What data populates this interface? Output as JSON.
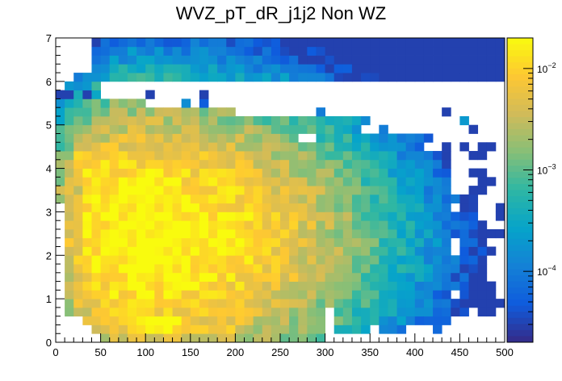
{
  "chart_data": {
    "type": "heatmap",
    "title": "WVZ_pT_dR_j1j2 Non WZ",
    "xlabel": "",
    "ylabel": "",
    "xlim": [
      0,
      500
    ],
    "ylim": [
      0,
      7
    ],
    "x_ticks": [
      "0",
      "50",
      "100",
      "150",
      "200",
      "250",
      "300",
      "350",
      "400",
      "450",
      "500"
    ],
    "y_ticks": [
      "0",
      "1",
      "2",
      "3",
      "4",
      "5",
      "6",
      "7"
    ],
    "x_bins": {
      "count": 50,
      "width": 10
    },
    "y_bins": {
      "count": 35,
      "width": 0.2
    },
    "z_scale": "log",
    "zlim": [
      2e-05,
      0.02
    ],
    "colorbar_labels": [
      {
        "value": 0.01,
        "base": "10",
        "exp": "−2"
      },
      {
        "value": 0.001,
        "base": "10",
        "exp": "−3"
      },
      {
        "value": 0.0001,
        "base": "10",
        "exp": "−4"
      }
    ],
    "palette": [
      "#352a87",
      "#0f5cdd",
      "#1481d6",
      "#06a4ca",
      "#2eb7a4",
      "#87bf77",
      "#d1bb59",
      "#fec832",
      "#f9fb0e"
    ],
    "regions": [
      {
        "x0": 70,
        "x1": 120,
        "y0": 2.6,
        "y1": 3.8,
        "v": 0.02
      },
      {
        "x0": 70,
        "x1": 100,
        "y0": 1.6,
        "y1": 2.6,
        "v": 0.02
      },
      {
        "x0": 80,
        "x1": 140,
        "y0": 0.2,
        "y1": 0.6,
        "v": 0.018
      },
      {
        "x0": 60,
        "x1": 110,
        "y0": 0.6,
        "y1": 1.6,
        "v": 0.011
      },
      {
        "x0": 30,
        "x1": 90,
        "y0": 2.2,
        "y1": 4.2,
        "v": 0.012
      },
      {
        "x0": 100,
        "x1": 150,
        "y0": 1.0,
        "y1": 3.2,
        "v": 0.0065
      },
      {
        "x0": 20,
        "x1": 60,
        "y0": 3.6,
        "y1": 4.6,
        "v": 0.006
      },
      {
        "x0": 110,
        "x1": 200,
        "y0": 0.2,
        "y1": 1.4,
        "v": 0.006
      },
      {
        "x0": 40,
        "x1": 100,
        "y0": 4.2,
        "y1": 5.0,
        "v": 0.003
      },
      {
        "x0": 130,
        "x1": 230,
        "y0": 1.4,
        "y1": 2.6,
        "v": 0.0035
      },
      {
        "x0": 180,
        "x1": 260,
        "y0": 0.6,
        "y1": 1.2,
        "v": 0.003
      },
      {
        "x0": 120,
        "x1": 200,
        "y0": 3.2,
        "y1": 4.2,
        "v": 0.002
      },
      {
        "x0": 10,
        "x1": 40,
        "y0": 1.0,
        "y1": 2.2,
        "v": 0.0035
      }
    ],
    "value_model": {
      "peak": 0.022,
      "center": [
        92,
        2.4
      ],
      "sigma_x": [
        45,
        105
      ],
      "sigma_y": 1.35,
      "floor": 3e-05
    },
    "empty_cells": [
      [
        0,
        0
      ],
      [
        1,
        0
      ],
      [
        2,
        0
      ],
      [
        3,
        0
      ],
      [
        4,
        0
      ],
      [
        0,
        1
      ],
      [
        1,
        1
      ],
      [
        2,
        1
      ],
      [
        3,
        1
      ],
      [
        0,
        2
      ],
      [
        1,
        2
      ],
      [
        2,
        2
      ],
      [
        0,
        3
      ],
      [
        0,
        4
      ],
      [
        0,
        5
      ],
      [
        0,
        6
      ],
      [
        0,
        7
      ],
      [
        0,
        8
      ],
      [
        0,
        9
      ],
      [
        0,
        10
      ],
      [
        0,
        11
      ],
      [
        0,
        12
      ],
      [
        0,
        13
      ],
      [
        0,
        14
      ],
      [
        0,
        15
      ],
      [
        0,
        28
      ],
      [
        0,
        29
      ],
      [
        0,
        30
      ],
      [
        0,
        31
      ],
      [
        0,
        32
      ],
      [
        0,
        33
      ],
      [
        0,
        34
      ],
      [
        1,
        30
      ],
      [
        1,
        31
      ],
      [
        1,
        32
      ],
      [
        1,
        33
      ],
      [
        1,
        34
      ],
      [
        2,
        31
      ],
      [
        2,
        32
      ],
      [
        2,
        33
      ],
      [
        2,
        34
      ],
      [
        3,
        31
      ],
      [
        3,
        32
      ],
      [
        3,
        33
      ],
      [
        3,
        34
      ],
      [
        5,
        29
      ],
      [
        6,
        29
      ],
      [
        7,
        29
      ],
      [
        8,
        29
      ],
      [
        9,
        29
      ],
      [
        10,
        29
      ],
      [
        11,
        29
      ],
      [
        12,
        29
      ],
      [
        13,
        29
      ],
      [
        14,
        29
      ],
      [
        15,
        29
      ],
      [
        16,
        29
      ],
      [
        17,
        29
      ],
      [
        18,
        29
      ],
      [
        19,
        29
      ],
      [
        20,
        29
      ],
      [
        21,
        29
      ],
      [
        22,
        29
      ],
      [
        23,
        29
      ],
      [
        24,
        29
      ],
      [
        25,
        29
      ],
      [
        26,
        29
      ],
      [
        27,
        29
      ],
      [
        28,
        29
      ],
      [
        29,
        29
      ],
      [
        30,
        29
      ],
      [
        31,
        29
      ],
      [
        32,
        29
      ],
      [
        33,
        29
      ],
      [
        34,
        29
      ],
      [
        35,
        29
      ],
      [
        36,
        29
      ],
      [
        37,
        29
      ],
      [
        38,
        29
      ],
      [
        39,
        29
      ],
      [
        40,
        29
      ],
      [
        41,
        29
      ],
      [
        42,
        29
      ],
      [
        43,
        29
      ],
      [
        44,
        29
      ],
      [
        45,
        29
      ],
      [
        46,
        29
      ],
      [
        47,
        29
      ],
      [
        48,
        29
      ],
      [
        49,
        29
      ],
      [
        5,
        28
      ],
      [
        6,
        28
      ],
      [
        7,
        28
      ],
      [
        8,
        28
      ],
      [
        9,
        28
      ],
      [
        10,
        28
      ],
      [
        11,
        28
      ],
      [
        12,
        28
      ],
      [
        13,
        28
      ],
      [
        14,
        28
      ],
      [
        15,
        28
      ],
      [
        17,
        28
      ],
      [
        18,
        28
      ],
      [
        19,
        28
      ],
      [
        20,
        28
      ],
      [
        21,
        28
      ],
      [
        22,
        28
      ],
      [
        23,
        28
      ],
      [
        24,
        28
      ],
      [
        25,
        28
      ],
      [
        26,
        28
      ],
      [
        27,
        28
      ],
      [
        28,
        28
      ],
      [
        29,
        28
      ],
      [
        30,
        28
      ],
      [
        31,
        28
      ],
      [
        32,
        28
      ],
      [
        33,
        28
      ],
      [
        34,
        28
      ],
      [
        35,
        28
      ],
      [
        36,
        28
      ],
      [
        37,
        28
      ],
      [
        38,
        28
      ],
      [
        39,
        28
      ],
      [
        40,
        28
      ],
      [
        41,
        28
      ],
      [
        42,
        28
      ],
      [
        43,
        28
      ],
      [
        44,
        28
      ],
      [
        45,
        28
      ],
      [
        46,
        28
      ],
      [
        47,
        28
      ],
      [
        48,
        28
      ],
      [
        49,
        28
      ],
      [
        10,
        27
      ],
      [
        11,
        27
      ],
      [
        12,
        27
      ],
      [
        13,
        27
      ],
      [
        14,
        27
      ],
      [
        15,
        27
      ],
      [
        16,
        27
      ],
      [
        17,
        27
      ],
      [
        18,
        27
      ],
      [
        19,
        27
      ],
      [
        20,
        27
      ],
      [
        21,
        27
      ],
      [
        22,
        27
      ],
      [
        23,
        27
      ],
      [
        24,
        27
      ],
      [
        25,
        27
      ],
      [
        26,
        27
      ],
      [
        27,
        27
      ],
      [
        28,
        27
      ],
      [
        29,
        27
      ],
      [
        30,
        27
      ],
      [
        31,
        27
      ],
      [
        32,
        27
      ],
      [
        33,
        27
      ],
      [
        34,
        27
      ],
      [
        35,
        27
      ],
      [
        36,
        27
      ],
      [
        37,
        27
      ],
      [
        38,
        27
      ],
      [
        39,
        27
      ],
      [
        40,
        27
      ],
      [
        41,
        27
      ],
      [
        42,
        27
      ],
      [
        43,
        27
      ],
      [
        44,
        27
      ],
      [
        45,
        27
      ],
      [
        46,
        27
      ],
      [
        47,
        27
      ],
      [
        48,
        27
      ],
      [
        49,
        27
      ],
      [
        20,
        26
      ],
      [
        21,
        26
      ],
      [
        22,
        26
      ],
      [
        23,
        26
      ],
      [
        24,
        26
      ],
      [
        25,
        26
      ],
      [
        26,
        26
      ],
      [
        27,
        26
      ],
      [
        28,
        26
      ],
      [
        30,
        26
      ],
      [
        31,
        26
      ],
      [
        32,
        26
      ],
      [
        33,
        26
      ],
      [
        34,
        26
      ],
      [
        35,
        26
      ],
      [
        36,
        26
      ],
      [
        37,
        26
      ],
      [
        38,
        26
      ],
      [
        39,
        26
      ],
      [
        40,
        26
      ],
      [
        41,
        26
      ],
      [
        42,
        26
      ],
      [
        44,
        26
      ],
      [
        45,
        26
      ],
      [
        46,
        26
      ],
      [
        47,
        26
      ],
      [
        48,
        26
      ],
      [
        49,
        26
      ],
      [
        35,
        25
      ],
      [
        36,
        25
      ],
      [
        37,
        25
      ],
      [
        38,
        25
      ],
      [
        39,
        25
      ],
      [
        40,
        25
      ],
      [
        41,
        25
      ],
      [
        42,
        25
      ],
      [
        43,
        25
      ],
      [
        44,
        25
      ],
      [
        46,
        25
      ],
      [
        47,
        25
      ],
      [
        48,
        25
      ],
      [
        49,
        25
      ],
      [
        34,
        24
      ],
      [
        35,
        24
      ],
      [
        37,
        24
      ],
      [
        38,
        24
      ],
      [
        39,
        24
      ],
      [
        40,
        24
      ],
      [
        41,
        24
      ],
      [
        42,
        24
      ],
      [
        43,
        24
      ],
      [
        44,
        24
      ],
      [
        45,
        24
      ],
      [
        47,
        24
      ],
      [
        48,
        24
      ],
      [
        49,
        24
      ],
      [
        27,
        23
      ],
      [
        28,
        23
      ],
      [
        42,
        23
      ],
      [
        43,
        23
      ],
      [
        44,
        23
      ],
      [
        45,
        23
      ],
      [
        46,
        23
      ],
      [
        47,
        23
      ],
      [
        48,
        23
      ],
      [
        49,
        23
      ],
      [
        41,
        22
      ],
      [
        42,
        22
      ],
      [
        44,
        22
      ],
      [
        46,
        22
      ],
      [
        49,
        22
      ],
      [
        44,
        21
      ],
      [
        45,
        21
      ],
      [
        48,
        21
      ],
      [
        49,
        21
      ],
      [
        44,
        20
      ],
      [
        45,
        20
      ],
      [
        46,
        20
      ],
      [
        47,
        20
      ],
      [
        48,
        20
      ],
      [
        49,
        20
      ],
      [
        44,
        19
      ],
      [
        45,
        19
      ],
      [
        48,
        19
      ],
      [
        49,
        19
      ],
      [
        44,
        18
      ],
      [
        45,
        18
      ],
      [
        46,
        18
      ],
      [
        49,
        18
      ],
      [
        44,
        17
      ],
      [
        45,
        17
      ],
      [
        48,
        17
      ],
      [
        49,
        17
      ],
      [
        47,
        16
      ],
      [
        48,
        16
      ],
      [
        49,
        16
      ],
      [
        44,
        15
      ],
      [
        47,
        15
      ],
      [
        48,
        15
      ],
      [
        47,
        14
      ],
      [
        48,
        14
      ],
      [
        48,
        13
      ],
      [
        49,
        13
      ],
      [
        44,
        11
      ],
      [
        48,
        11
      ],
      [
        49,
        11
      ],
      [
        44,
        10
      ],
      [
        49,
        10
      ],
      [
        48,
        9
      ],
      [
        49,
        9
      ],
      [
        48,
        8
      ],
      [
        49,
        8
      ],
      [
        48,
        7
      ],
      [
        49,
        7
      ],
      [
        49,
        6
      ],
      [
        44,
        5
      ],
      [
        49,
        5
      ],
      [
        30,
        3
      ],
      [
        46,
        3
      ],
      [
        49,
        3
      ],
      [
        30,
        2
      ],
      [
        44,
        2
      ],
      [
        45,
        2
      ],
      [
        46,
        2
      ],
      [
        47,
        2
      ],
      [
        48,
        2
      ],
      [
        49,
        2
      ],
      [
        30,
        1
      ],
      [
        35,
        1
      ],
      [
        39,
        1
      ],
      [
        40,
        1
      ],
      [
        41,
        1
      ],
      [
        43,
        1
      ],
      [
        44,
        1
      ],
      [
        45,
        1
      ],
      [
        46,
        1
      ],
      [
        47,
        1
      ],
      [
        48,
        1
      ],
      [
        49,
        1
      ],
      [
        30,
        0
      ],
      [
        31,
        0
      ],
      [
        32,
        0
      ],
      [
        33,
        0
      ],
      [
        34,
        0
      ],
      [
        35,
        0
      ],
      [
        36,
        0
      ],
      [
        37,
        0
      ],
      [
        38,
        0
      ],
      [
        39,
        0
      ],
      [
        40,
        0
      ],
      [
        41,
        0
      ],
      [
        42,
        0
      ],
      [
        43,
        0
      ],
      [
        44,
        0
      ],
      [
        45,
        0
      ],
      [
        46,
        0
      ],
      [
        47,
        0
      ],
      [
        48,
        0
      ],
      [
        49,
        0
      ]
    ],
    "extra_cells": [
      {
        "i": 0,
        "j": 28,
        "v": 3e-05
      },
      {
        "i": 1,
        "j": 28,
        "v": 3e-05
      },
      {
        "i": 2,
        "j": 28,
        "v": 0.0004
      },
      {
        "i": 3,
        "j": 28,
        "v": 3e-05
      },
      {
        "i": 4,
        "j": 28,
        "v": 0.0003
      },
      {
        "i": 10,
        "j": 28,
        "v": 3e-05
      },
      {
        "i": 16,
        "j": 28,
        "v": 3e-05
      },
      {
        "i": 16,
        "j": 27,
        "v": 5e-05
      },
      {
        "i": 14,
        "j": 27,
        "v": 0.00015
      },
      {
        "i": 29,
        "j": 26,
        "v": 0.0001
      },
      {
        "i": 43,
        "j": 26,
        "v": 3e-05
      },
      {
        "i": 45,
        "j": 25,
        "v": 0.0002
      },
      {
        "i": 36,
        "j": 24,
        "v": 0.0001
      },
      {
        "i": 46,
        "j": 24,
        "v": 3e-05
      }
    ]
  }
}
